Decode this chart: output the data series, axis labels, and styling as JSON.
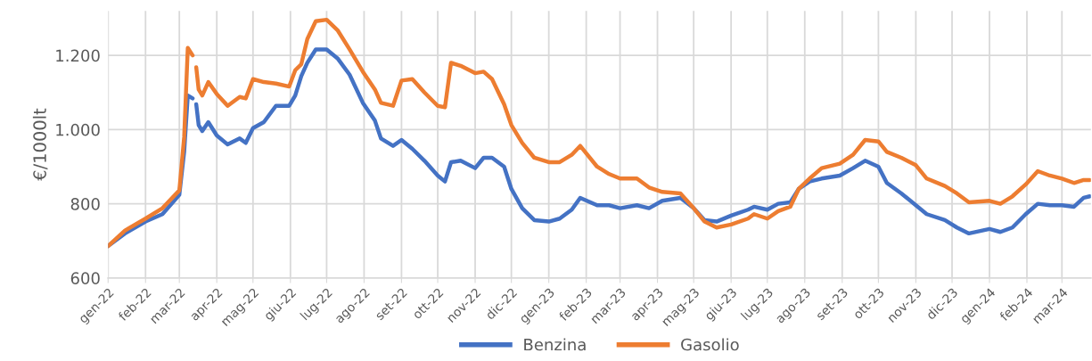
{
  "chart_data": {
    "type": "line",
    "ylabel": "€/1000lt",
    "x": [
      "2022-01-01",
      "2022-01-15",
      "2022-02-01",
      "2022-02-15",
      "2022-03-01",
      "2022-03-05",
      "2022-03-08",
      "2022-03-12",
      "2022-03-13",
      "2022-03-15",
      "2022-03-17",
      "2022-03-20",
      "2022-03-25",
      "2022-04-01",
      "2022-04-10",
      "2022-04-20",
      "2022-04-25",
      "2022-05-01",
      "2022-05-10",
      "2022-05-20",
      "2022-05-31",
      "2022-06-05",
      "2022-06-10",
      "2022-06-15",
      "2022-06-22",
      "2022-07-01",
      "2022-07-10",
      "2022-07-20",
      "2022-07-31",
      "2022-08-10",
      "2022-08-15",
      "2022-08-25",
      "2022-09-01",
      "2022-09-10",
      "2022-09-20",
      "2022-10-01",
      "2022-10-07",
      "2022-10-12",
      "2022-10-20",
      "2022-11-01",
      "2022-11-08",
      "2022-11-15",
      "2022-11-25",
      "2022-12-01",
      "2022-12-10",
      "2022-12-20",
      "2023-01-01",
      "2023-01-10",
      "2023-01-20",
      "2023-01-27",
      "2023-02-10",
      "2023-02-20",
      "2023-03-01",
      "2023-03-15",
      "2023-03-25",
      "2023-04-05",
      "2023-04-20",
      "2023-05-01",
      "2023-05-10",
      "2023-05-20",
      "2023-06-01",
      "2023-06-15",
      "2023-06-20",
      "2023-07-01",
      "2023-07-10",
      "2023-07-20",
      "2023-07-27",
      "2023-08-05",
      "2023-08-15",
      "2023-08-30",
      "2023-09-10",
      "2023-09-20",
      "2023-10-01",
      "2023-10-08",
      "2023-10-20",
      "2023-11-01",
      "2023-11-10",
      "2023-11-25",
      "2023-12-05",
      "2023-12-15",
      "2024-01-01",
      "2024-01-10",
      "2024-01-20",
      "2024-01-31",
      "2024-02-10",
      "2024-02-20",
      "2024-03-01",
      "2024-03-11",
      "2024-03-19",
      "2024-03-24"
    ],
    "series": [
      {
        "name": "Benzina",
        "color": "#4472c4",
        "values": [
          686,
          720,
          752,
          772,
          824,
          940,
          1092,
          1084,
          null,
          1068,
          1012,
          996,
          1020,
          984,
          960,
          976,
          964,
          1004,
          1020,
          1064,
          1064,
          1092,
          1144,
          1180,
          1216,
          1216,
          1192,
          1148,
          1072,
          1024,
          976,
          956,
          972,
          948,
          916,
          876,
          860,
          912,
          916,
          896,
          924,
          924,
          900,
          840,
          788,
          756,
          752,
          760,
          784,
          816,
          796,
          796,
          788,
          796,
          788,
          808,
          816,
          788,
          756,
          752,
          768,
          784,
          792,
          784,
          800,
          804,
          840,
          860,
          868,
          876,
          896,
          916,
          900,
          856,
          828,
          796,
          772,
          756,
          736,
          720,
          732,
          724,
          736,
          772,
          800,
          796,
          796,
          792,
          816,
          820
        ]
      },
      {
        "name": "Gasolio",
        "color": "#ed7d31",
        "values": [
          686,
          728,
          760,
          788,
          836,
          980,
          1220,
          1200,
          null,
          1168,
          1108,
          1092,
          1128,
          1096,
          1064,
          1088,
          1084,
          1136,
          1128,
          1124,
          1116,
          1160,
          1176,
          1244,
          1292,
          1296,
          1268,
          1216,
          1156,
          1108,
          1072,
          1064,
          1132,
          1136,
          1100,
          1064,
          1060,
          1180,
          1172,
          1152,
          1156,
          1136,
          1068,
          1012,
          964,
          924,
          912,
          912,
          932,
          956,
          900,
          880,
          868,
          868,
          844,
          832,
          828,
          788,
          752,
          736,
          744,
          760,
          772,
          760,
          780,
          792,
          840,
          868,
          896,
          908,
          932,
          972,
          968,
          940,
          924,
          904,
          868,
          848,
          828,
          804,
          808,
          800,
          820,
          852,
          888,
          876,
          868,
          856,
          864,
          864
        ]
      }
    ],
    "xlim": [
      "2022-01-01",
      "2024-03-25"
    ],
    "xticks": [
      {
        "value": "2022-01-01",
        "label": "gen-22"
      },
      {
        "value": "2022-02-01",
        "label": "feb-22"
      },
      {
        "value": "2022-03-01",
        "label": "mar-22"
      },
      {
        "value": "2022-04-01",
        "label": "apr-22"
      },
      {
        "value": "2022-05-01",
        "label": "mag-22"
      },
      {
        "value": "2022-06-01",
        "label": "giu-22"
      },
      {
        "value": "2022-07-01",
        "label": "lug-22"
      },
      {
        "value": "2022-08-01",
        "label": "ago-22"
      },
      {
        "value": "2022-09-01",
        "label": "set-22"
      },
      {
        "value": "2022-10-01",
        "label": "ott-22"
      },
      {
        "value": "2022-11-01",
        "label": "nov-22"
      },
      {
        "value": "2022-12-01",
        "label": "dic-22"
      },
      {
        "value": "2023-01-01",
        "label": "gen-23"
      },
      {
        "value": "2023-02-01",
        "label": "feb-23"
      },
      {
        "value": "2023-03-01",
        "label": "mar-23"
      },
      {
        "value": "2023-04-01",
        "label": "apr-23"
      },
      {
        "value": "2023-05-01",
        "label": "mag-23"
      },
      {
        "value": "2023-06-01",
        "label": "giu-23"
      },
      {
        "value": "2023-07-01",
        "label": "lug-23"
      },
      {
        "value": "2023-08-01",
        "label": "ago-23"
      },
      {
        "value": "2023-09-01",
        "label": "set-23"
      },
      {
        "value": "2023-10-01",
        "label": "ott-23"
      },
      {
        "value": "2023-11-01",
        "label": "nov-23"
      },
      {
        "value": "2023-12-01",
        "label": "dic-23"
      },
      {
        "value": "2024-01-01",
        "label": "gen-24"
      },
      {
        "value": "2024-02-01",
        "label": "feb-24"
      },
      {
        "value": "2024-03-01",
        "label": "mar-24"
      }
    ],
    "ylim": [
      600,
      1320
    ],
    "yticks": [
      600,
      800,
      {
        "value": 1000,
        "label": "1.000"
      },
      {
        "value": 1200,
        "label": "1.200"
      }
    ],
    "grid": true,
    "legend": "bottom",
    "marker": "none",
    "line_style": "solid"
  }
}
